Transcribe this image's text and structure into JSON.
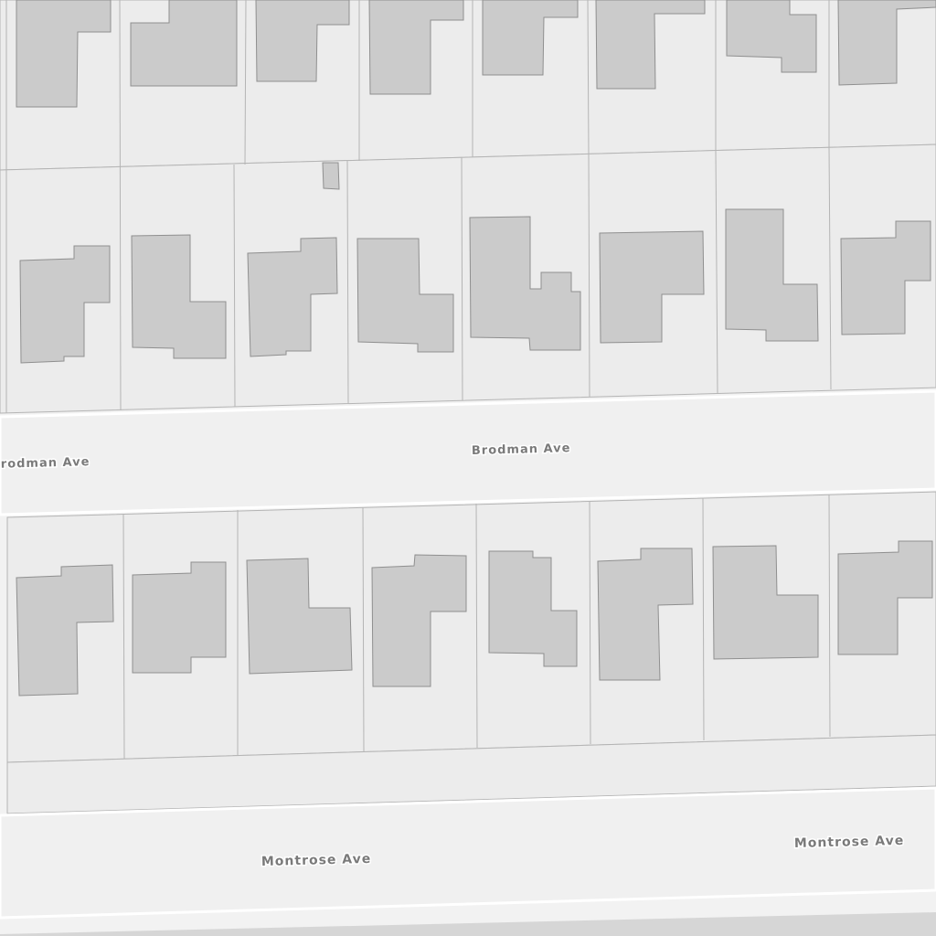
{
  "streets": [
    {
      "label": "Brodman Ave"
    },
    {
      "label": "Brodman Ave"
    },
    {
      "label": "Montrose Ave"
    },
    {
      "label": "Montrose Ave"
    }
  ]
}
